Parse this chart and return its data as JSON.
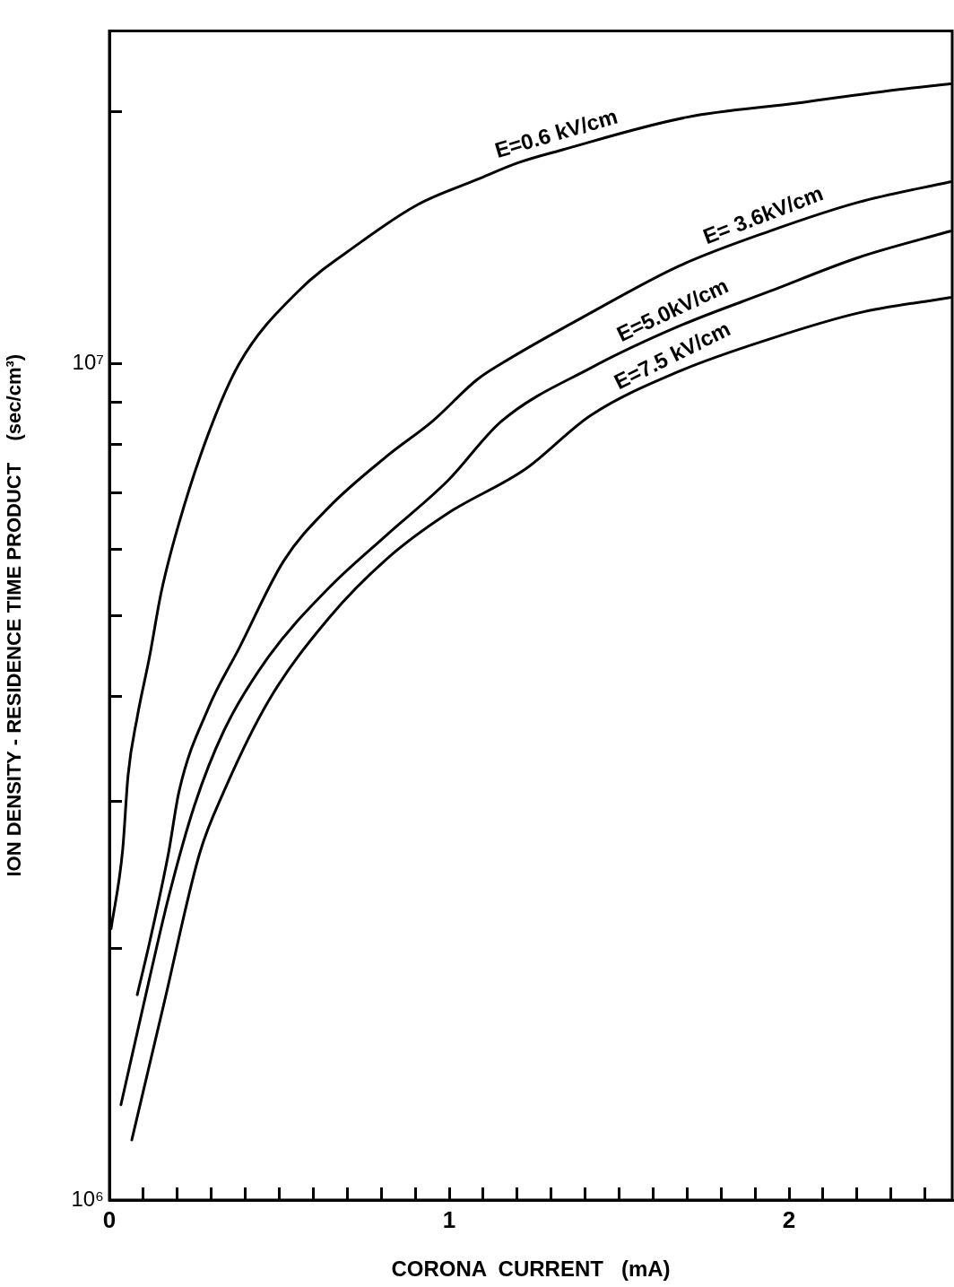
{
  "chart_data": {
    "type": "line",
    "xlabel": "CORONA  CURRENT   (mA)",
    "ylabel": "ION DENSITY - RESIDENCE TIME PRODUCT    (sec/cm³)",
    "log": "y",
    "xlim": [
      0,
      2.48
    ],
    "ylim": [
      1000000,
      25000000
    ],
    "xticks": [
      0,
      {
        "value": 0.1,
        "label": null
      },
      {
        "value": 0.2,
        "label": null
      },
      {
        "value": 0.3,
        "label": null
      },
      {
        "value": 0.4,
        "label": null
      },
      {
        "value": 0.5,
        "label": null
      },
      {
        "value": 0.6,
        "label": null
      },
      {
        "value": 0.7,
        "label": null
      },
      {
        "value": 0.8,
        "label": null
      },
      {
        "value": 0.9,
        "label": null
      },
      1,
      {
        "value": 1.1,
        "label": null
      },
      {
        "value": 1.2,
        "label": null
      },
      {
        "value": 1.3,
        "label": null
      },
      {
        "value": 1.4,
        "label": null
      },
      {
        "value": 1.5,
        "label": null
      },
      {
        "value": 1.6,
        "label": null
      },
      {
        "value": 1.7,
        "label": null
      },
      {
        "value": 1.8,
        "label": null
      },
      {
        "value": 1.9,
        "label": null
      },
      2,
      {
        "value": 2.1,
        "label": null
      },
      {
        "value": 2.2,
        "label": null
      },
      {
        "value": 2.3,
        "label": null
      },
      {
        "value": 2.4,
        "label": null
      }
    ],
    "yticks": [
      {
        "value": 1000000,
        "label": "10⁶"
      },
      {
        "value": 2000000,
        "label": null
      },
      {
        "value": 3000000,
        "label": null
      },
      {
        "value": 4000000,
        "label": null
      },
      {
        "value": 5000000,
        "label": null
      },
      {
        "value": 6000000,
        "label": null
      },
      {
        "value": 7000000,
        "label": null
      },
      {
        "value": 8000000,
        "label": null
      },
      {
        "value": 9000000,
        "label": null
      },
      {
        "value": 10000000,
        "label": "10⁷"
      },
      {
        "value": 20000000,
        "label": null
      }
    ],
    "grid": false,
    "legend": false,
    "marker": "none",
    "line_style": "solid",
    "series": [
      {
        "color": "#000000",
        "x": [
          0.005,
          0.039,
          0.055,
          0.082,
          0.118,
          0.153,
          0.205,
          0.292,
          0.382,
          0.555,
          0.732,
          0.908,
          1.082,
          1.205,
          1.329,
          1.697,
          2.029,
          2.292,
          2.474
        ],
        "values": [
          2110000,
          2620000,
          3220000,
          3780000,
          4460000,
          5340000,
          6450000,
          8260000,
          10000000,
          12200000,
          13900000,
          15500000,
          16600000,
          17400000,
          18000000,
          19700000,
          20500000,
          21200000,
          21600000
        ]
      },
      {
        "color": "#000000",
        "x": [
          0.082,
          0.118,
          0.174,
          0.205,
          0.292,
          0.382,
          0.513,
          0.645,
          0.818,
          0.95,
          1.082,
          1.153,
          1.416,
          1.679,
          1.942,
          2.205,
          2.474
        ],
        "values": [
          1760000,
          2030000,
          2600000,
          3080000,
          3880000,
          4570000,
          5810000,
          6730000,
          7760000,
          8530000,
          9570000,
          10000000,
          11500000,
          13100000,
          14400000,
          15600000,
          16500000
        ]
      },
      {
        "color": "#000000",
        "x": [
          0.034,
          0.118,
          0.174,
          0.25,
          0.337,
          0.468,
          0.645,
          0.818,
          0.995,
          1.153,
          1.416,
          1.679,
          1.942,
          2.205,
          2.474
        ],
        "values": [
          1300000,
          1840000,
          2300000,
          2960000,
          3640000,
          4460000,
          5390000,
          6250000,
          7240000,
          8530000,
          9880000,
          11100000,
          12200000,
          13400000,
          14400000
        ]
      },
      {
        "color": "#000000",
        "x": [
          0.066,
          0.161,
          0.266,
          0.337,
          0.468,
          0.645,
          0.818,
          0.995,
          1.224,
          1.416,
          1.679,
          1.942,
          2.205,
          2.474
        ],
        "values": [
          1180000,
          1720000,
          2600000,
          3080000,
          3950000,
          4960000,
          5850000,
          6620000,
          7480000,
          8670000,
          9800000,
          10700000,
          11500000,
          12000000
        ]
      }
    ],
    "annotations": [
      {
        "text": "E=0.6 kV/cm",
        "x": 1.329,
        "y": 18000000
      },
      {
        "text": "E= 3.6kV/cm",
        "x": 1.942,
        "y": 14400000
      },
      {
        "text": "E=5.0kV/cm",
        "x": 1.679,
        "y": 11100000
      },
      {
        "text": "E=7.5 kV/cm",
        "x": 1.679,
        "y": 9800000
      }
    ]
  }
}
